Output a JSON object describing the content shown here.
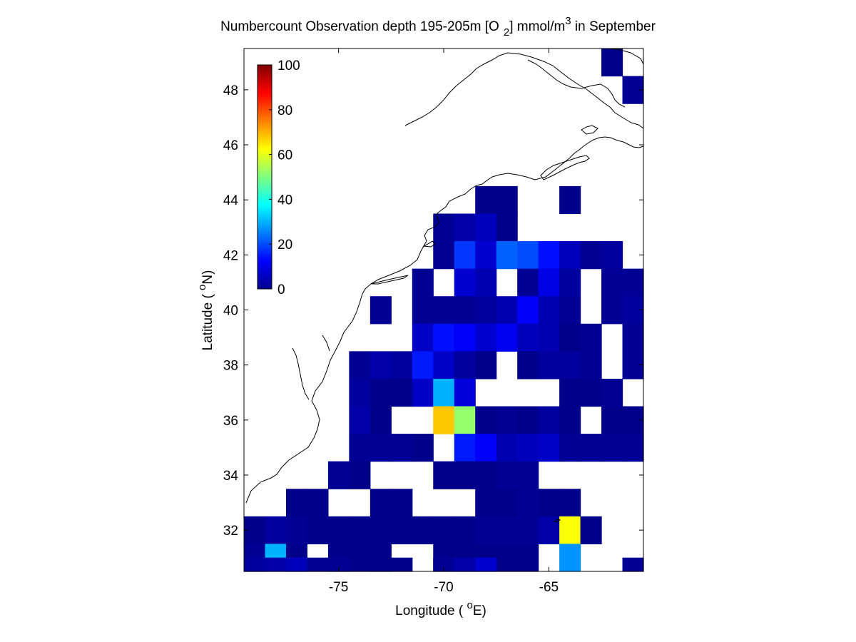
{
  "chart_data": {
    "type": "heatmap",
    "title": {
      "main": "Numbercount Observation depth 195-205m [O",
      "sub": "2",
      "mid": "] mmol/m",
      "sup": "3",
      "tail": " in September"
    },
    "xlabel": {
      "pre": "Longitude ( ",
      "sup": "o",
      "post": "E)"
    },
    "ylabel": {
      "pre": "Latitude ( ",
      "sup": "o",
      "post": "N)"
    },
    "xlim": [
      -79.5,
      -60.5
    ],
    "ylim": [
      30.5,
      49.5
    ],
    "x_ticks": [
      -75,
      -70,
      -65
    ],
    "x_tick_labels": [
      "-75",
      "-70",
      "-65"
    ],
    "y_ticks": [
      32,
      34,
      36,
      38,
      40,
      42,
      44,
      46,
      48
    ],
    "y_tick_labels": [
      "32",
      "34",
      "36",
      "38",
      "40",
      "42",
      "44",
      "46",
      "48"
    ],
    "colorbar": {
      "colormap": "jet",
      "range": [
        0,
        100
      ],
      "ticks": [
        0,
        20,
        40,
        60,
        80,
        100
      ],
      "tick_labels": [
        "0",
        "20",
        "40",
        "60",
        "80",
        "100"
      ],
      "placement": "top-left inside axes"
    },
    "grid": false,
    "cell_size_deg": 1,
    "columns_lon_centers": [
      -79,
      -78,
      -77,
      -76,
      -75,
      -74,
      -73,
      -72,
      -71,
      -70,
      -69,
      -68,
      -67,
      -66,
      -65,
      -64,
      -63,
      -62,
      -61
    ],
    "rows": [
      {
        "lat": 49,
        "values": [
          null,
          null,
          null,
          null,
          null,
          null,
          null,
          null,
          null,
          null,
          null,
          null,
          null,
          null,
          null,
          null,
          null,
          1,
          null
        ]
      },
      {
        "lat": 48,
        "values": [
          null,
          null,
          null,
          null,
          null,
          null,
          null,
          null,
          null,
          null,
          null,
          null,
          null,
          null,
          null,
          null,
          null,
          null,
          2
        ]
      },
      {
        "lat": 44,
        "values": [
          null,
          null,
          null,
          null,
          null,
          null,
          null,
          null,
          null,
          null,
          null,
          1,
          1,
          null,
          null,
          1,
          null,
          null,
          null
        ]
      },
      {
        "lat": 43,
        "values": [
          null,
          null,
          null,
          null,
          null,
          null,
          null,
          null,
          null,
          2,
          4,
          6,
          1,
          null,
          null,
          null,
          null,
          null,
          null
        ]
      },
      {
        "lat": 42,
        "values": [
          null,
          null,
          null,
          null,
          null,
          null,
          null,
          null,
          null,
          2,
          18,
          8,
          22,
          20,
          14,
          6,
          2,
          3,
          null
        ]
      },
      {
        "lat": 41,
        "values": [
          null,
          null,
          null,
          null,
          null,
          null,
          null,
          null,
          2,
          null,
          8,
          5,
          null,
          2,
          10,
          3,
          null,
          2,
          2
        ]
      },
      {
        "lat": 40,
        "values": [
          null,
          null,
          null,
          null,
          null,
          null,
          2,
          null,
          2,
          2,
          2,
          3,
          5,
          12,
          5,
          2,
          null,
          2,
          3
        ]
      },
      {
        "lat": 39,
        "values": [
          null,
          null,
          null,
          null,
          null,
          null,
          null,
          null,
          7,
          14,
          12,
          8,
          11,
          6,
          5,
          1,
          2,
          null,
          2
        ]
      },
      {
        "lat": 38,
        "values": [
          null,
          null,
          null,
          null,
          null,
          2,
          4,
          3,
          15,
          7,
          3,
          1,
          null,
          1,
          3,
          3,
          2,
          null,
          2
        ]
      },
      {
        "lat": 37,
        "values": [
          null,
          null,
          null,
          null,
          null,
          3,
          1,
          1,
          7,
          30,
          9,
          null,
          null,
          null,
          null,
          1,
          1,
          2,
          null
        ]
      },
      {
        "lat": 36,
        "values": [
          null,
          null,
          null,
          null,
          null,
          4,
          1,
          null,
          null,
          68,
          52,
          1,
          2,
          1,
          3,
          1,
          null,
          1,
          1
        ]
      },
      {
        "lat": 35,
        "values": [
          null,
          null,
          null,
          null,
          null,
          2,
          2,
          2,
          1,
          null,
          15,
          12,
          5,
          6,
          7,
          2,
          2,
          2,
          2
        ]
      },
      {
        "lat": 34,
        "values": [
          null,
          null,
          null,
          null,
          2,
          1,
          null,
          null,
          null,
          1,
          1,
          1,
          2,
          2,
          null,
          null,
          null,
          null,
          null
        ]
      },
      {
        "lat": 33,
        "values": [
          null,
          null,
          1,
          1,
          null,
          null,
          1,
          1,
          null,
          null,
          null,
          1,
          1,
          2,
          1,
          1,
          null,
          null,
          null
        ]
      },
      {
        "lat": 32,
        "values": [
          1,
          3,
          2,
          1,
          1,
          1,
          1,
          1,
          1,
          1,
          1,
          2,
          2,
          2,
          4,
          62,
          1,
          null,
          null
        ]
      },
      {
        "lat": 31,
        "values": [
          2,
          30,
          1,
          null,
          1,
          1,
          1,
          null,
          null,
          1,
          1,
          1,
          1,
          1,
          null,
          27,
          null,
          null,
          null
        ]
      },
      {
        "lat": 30.5,
        "values": [
          3,
          4,
          6,
          2,
          2,
          null,
          1,
          1,
          null,
          2,
          4,
          8,
          null,
          null,
          null,
          null,
          null,
          null,
          2
        ]
      }
    ]
  }
}
